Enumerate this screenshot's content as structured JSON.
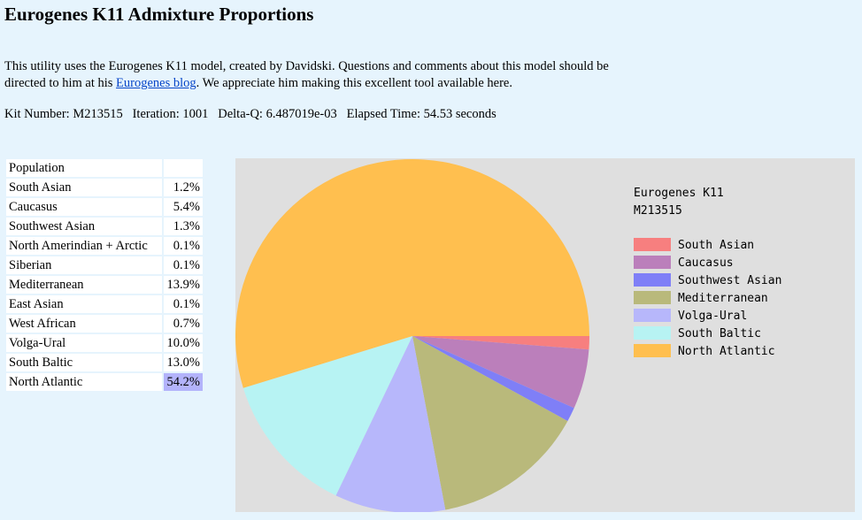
{
  "page": {
    "title": "Eurogenes K11 Admixture Proportions",
    "intro_before": "This utility uses the Eurogenes K11 model, created by Davidski. Questions and comments about this model should be directed to him at his ",
    "intro_link": "Eurogenes blog",
    "intro_after": ". We appreciate him making this excellent tool available here.",
    "stats_line": "Kit Number: M213515   Iteration: 1001   Delta-Q: 6.487019e-03   Elapsed Time: 54.53 seconds"
  },
  "table": {
    "header": "Population",
    "rows": [
      {
        "name": "South Asian",
        "value": "1.2%"
      },
      {
        "name": "Caucasus",
        "value": "5.4%"
      },
      {
        "name": "Southwest Asian",
        "value": "1.3%"
      },
      {
        "name": "North Amerindian + Arctic",
        "value": "0.1%"
      },
      {
        "name": "Siberian",
        "value": "0.1%"
      },
      {
        "name": "Mediterranean",
        "value": "13.9%"
      },
      {
        "name": "East Asian",
        "value": "0.1%"
      },
      {
        "name": "West African",
        "value": "0.7%"
      },
      {
        "name": "Volga-Ural",
        "value": "10.0%"
      },
      {
        "name": "South Baltic",
        "value": "13.0%"
      },
      {
        "name": "North Atlantic",
        "value": "54.2%"
      }
    ]
  },
  "chart_data": {
    "type": "pie",
    "title_lines": [
      "Eurogenes K11",
      "M213515"
    ],
    "legend_placement": "right",
    "slices": [
      {
        "label": "South Asian",
        "value": 1.2,
        "color": "#f77f7f"
      },
      {
        "label": "Caucasus",
        "value": 5.4,
        "color": "#bb7fbb"
      },
      {
        "label": "Southwest Asian",
        "value": 1.3,
        "color": "#7f7ff7"
      },
      {
        "label": "Mediterranean",
        "value": 13.9,
        "color": "#b9b97b"
      },
      {
        "label": "Volga-Ural",
        "value": 10.0,
        "color": "#b7b7fb"
      },
      {
        "label": "South Baltic",
        "value": 13.0,
        "color": "#b7f3f3"
      },
      {
        "label": "North Atlantic",
        "value": 54.2,
        "color": "#ffbf4f"
      }
    ]
  }
}
